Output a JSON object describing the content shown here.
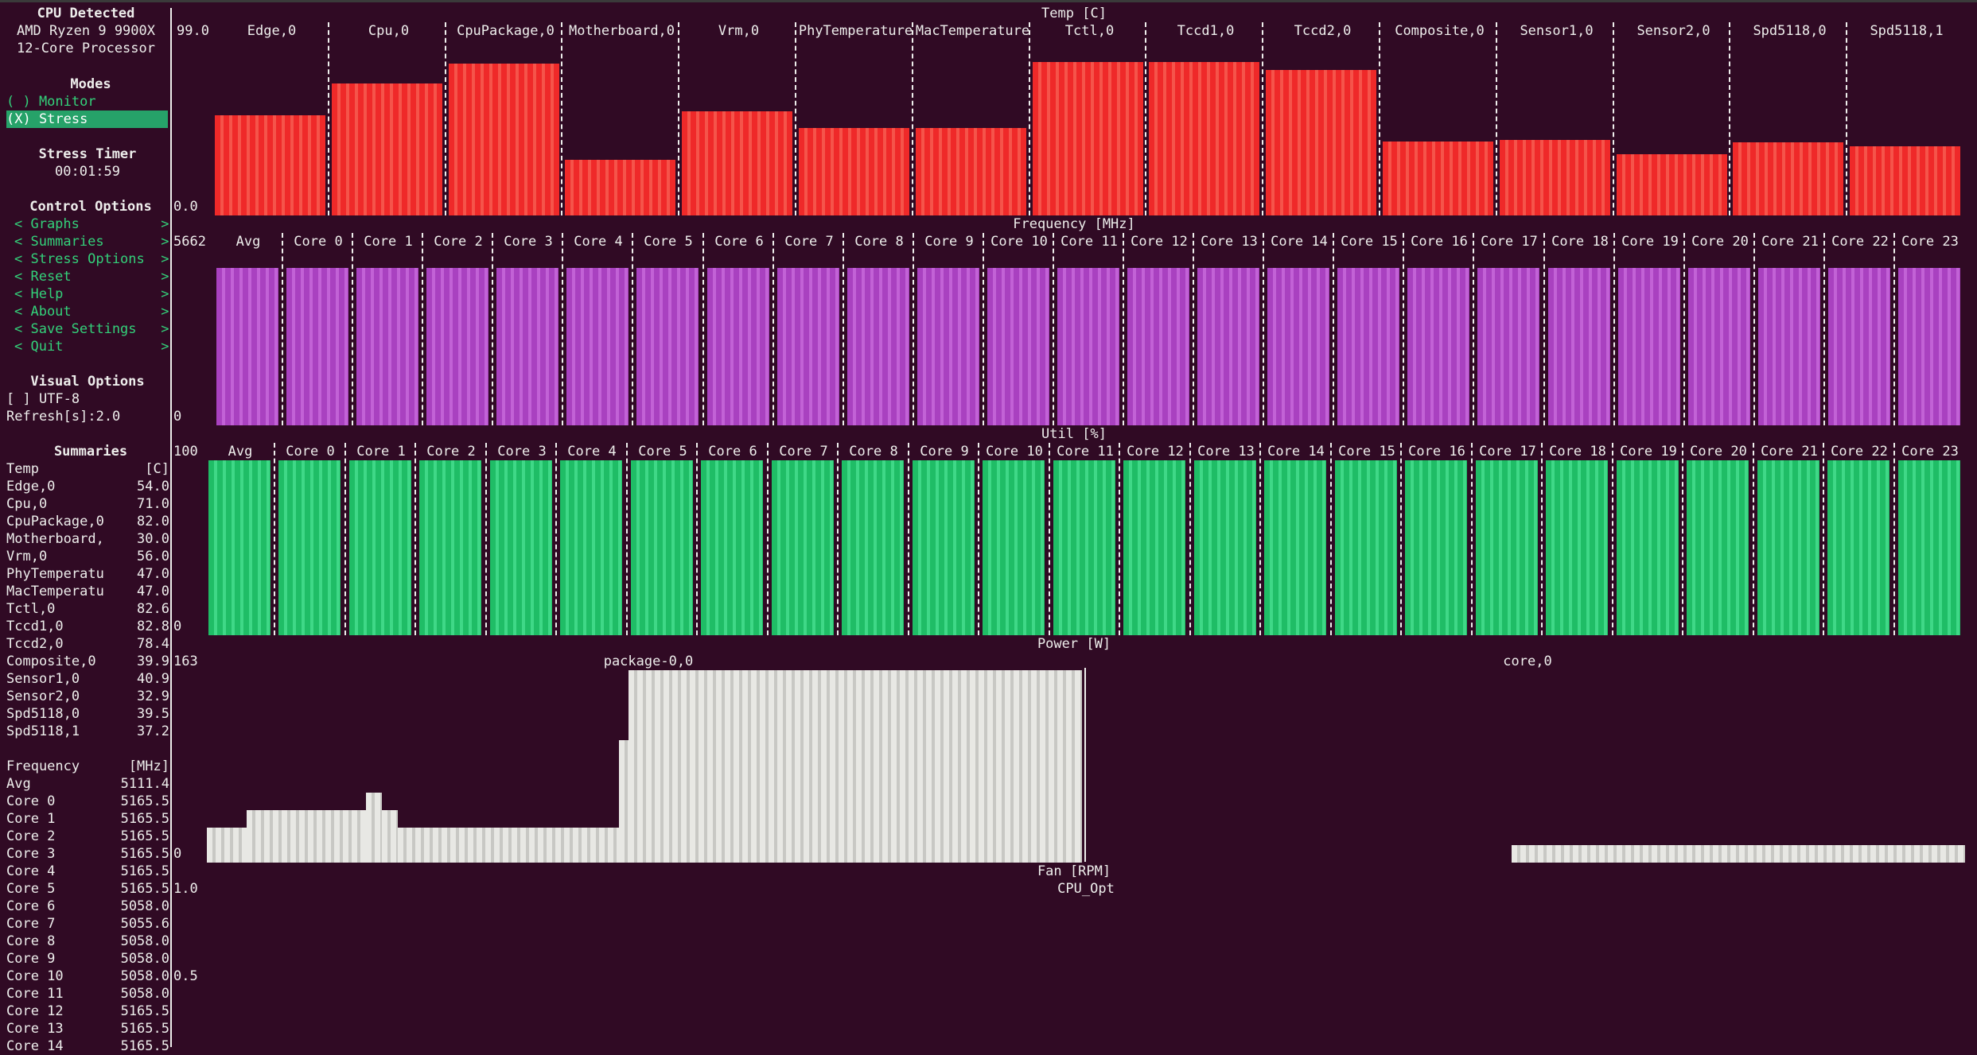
{
  "sidebar": {
    "cpu_detected_title": "CPU Detected",
    "cpu_name_line1": "AMD Ryzen 9 9900X",
    "cpu_name_line2": "12-Core Processor",
    "modes_title": "Modes",
    "mode_monitor": "( ) Monitor",
    "mode_stress": "(X) Stress",
    "stress_timer_title": "Stress Timer",
    "stress_timer_value": "00:01:59",
    "control_options_title": "Control Options",
    "menu": [
      {
        "label": "< Graphs          >"
      },
      {
        "label": "< Summaries       >"
      },
      {
        "label": "< Stress Options  >"
      },
      {
        "label": "< Reset           >"
      },
      {
        "label": "< Help            >"
      },
      {
        "label": "< About           >"
      },
      {
        "label": "< Save Settings   >"
      },
      {
        "label": "< Quit            >"
      }
    ],
    "visual_options_title": "Visual Options",
    "utf8_option": "[ ] UTF-8",
    "refresh_label": "Refresh[s]:2.0",
    "summaries_title": "Summaries",
    "temp_header": {
      "name": "Temp",
      "unit": "[C]"
    },
    "temp_rows": [
      {
        "name": "Edge,0",
        "value": "54.0"
      },
      {
        "name": "Cpu,0",
        "value": "71.0"
      },
      {
        "name": "CpuPackage,0",
        "value": "82.0"
      },
      {
        "name": "Motherboard,",
        "value": "30.0"
      },
      {
        "name": "Vrm,0",
        "value": "56.0"
      },
      {
        "name": "PhyTemperatu",
        "value": "47.0"
      },
      {
        "name": "MacTemperatu",
        "value": "47.0"
      },
      {
        "name": "Tctl,0",
        "value": "82.6"
      },
      {
        "name": "Tccd1,0",
        "value": "82.8"
      },
      {
        "name": "Tccd2,0",
        "value": "78.4"
      },
      {
        "name": "Composite,0",
        "value": "39.9"
      },
      {
        "name": "Sensor1,0",
        "value": "40.9"
      },
      {
        "name": "Sensor2,0",
        "value": "32.9"
      },
      {
        "name": "Spd5118,0",
        "value": "39.5"
      },
      {
        "name": "Spd5118,1",
        "value": "37.2"
      }
    ],
    "freq_header": {
      "name": "Frequency",
      "unit": "[MHz]"
    },
    "freq_rows": [
      {
        "name": "Avg",
        "value": "5111.4"
      },
      {
        "name": "Core 0",
        "value": "5165.5"
      },
      {
        "name": "Core 1",
        "value": "5165.5"
      },
      {
        "name": "Core 2",
        "value": "5165.5"
      },
      {
        "name": "Core 3",
        "value": "5165.5"
      },
      {
        "name": "Core 4",
        "value": "5165.5"
      },
      {
        "name": "Core 5",
        "value": "5165.5"
      },
      {
        "name": "Core 6",
        "value": "5058.0"
      },
      {
        "name": "Core 7",
        "value": "5055.6"
      },
      {
        "name": "Core 8",
        "value": "5058.0"
      },
      {
        "name": "Core 9",
        "value": "5058.0"
      },
      {
        "name": "Core 10",
        "value": "5058.0"
      },
      {
        "name": "Core 11",
        "value": "5058.0"
      },
      {
        "name": "Core 12",
        "value": "5165.5"
      },
      {
        "name": "Core 13",
        "value": "5165.5"
      },
      {
        "name": "Core 14",
        "value": "5165.5"
      }
    ]
  },
  "graphs": {
    "temp": {
      "title": "Temp [C]",
      "ymax_label": "99.0",
      "ymin_label": "0.0",
      "ymax": 99,
      "sensors": [
        "Edge,0",
        "Cpu,0",
        "CpuPackage,0",
        "Motherboard,0",
        "Vrm,0",
        "PhyTemperature",
        "MacTemperature",
        "Tctl,0",
        "Tccd1,0",
        "Tccd2,0",
        "Composite,0",
        "Sensor1,0",
        "Sensor2,0",
        "Spd5118,0",
        "Spd5118,1"
      ],
      "values": [
        54,
        71,
        82,
        30,
        56,
        47,
        47,
        82.6,
        82.8,
        78.4,
        39.9,
        40.9,
        32.9,
        39.5,
        37.2
      ]
    },
    "frequency": {
      "title": "Frequency [MHz]",
      "ymax_label": "5662",
      "ymin_label": "0",
      "columns": [
        "Avg",
        "Core 0",
        "Core 1",
        "Core 2",
        "Core 3",
        "Core 4",
        "Core 5",
        "Core 6",
        "Core 7",
        "Core 8",
        "Core 9",
        "Core 10",
        "Core 11",
        "Core 12",
        "Core 13",
        "Core 14",
        "Core 15",
        "Core 16",
        "Core 17",
        "Core 18",
        "Core 19",
        "Core 20",
        "Core 21",
        "Core 22",
        "Core 23"
      ]
    },
    "util": {
      "title": "Util [%]",
      "ymax_label": "100",
      "ymin_label": "0",
      "columns": [
        "Avg",
        "Core 0",
        "Core 1",
        "Core 2",
        "Core 3",
        "Core 4",
        "Core 5",
        "Core 6",
        "Core 7",
        "Core 8",
        "Core 9",
        "Core 10",
        "Core 11",
        "Core 12",
        "Core 13",
        "Core 14",
        "Core 15",
        "Core 16",
        "Core 17",
        "Core 18",
        "Core 19",
        "Core 20",
        "Core 21",
        "Core 22",
        "Core 23"
      ]
    },
    "power": {
      "title": "Power [W]",
      "ymax_label": "163",
      "ymin_label": "0",
      "series": [
        "package-0,0",
        "core,0"
      ]
    },
    "fan": {
      "title": "Fan [RPM]",
      "ymax_label": "1.0",
      "mid_label": "0.5",
      "series": [
        "CPU_Opt"
      ]
    }
  },
  "colors": {
    "background": "#300a24",
    "temp": "#ef2929",
    "frequency": "#a941c0",
    "util": "#1fbd66",
    "power": "#e8e8e4",
    "accent": "#33d17a"
  }
}
